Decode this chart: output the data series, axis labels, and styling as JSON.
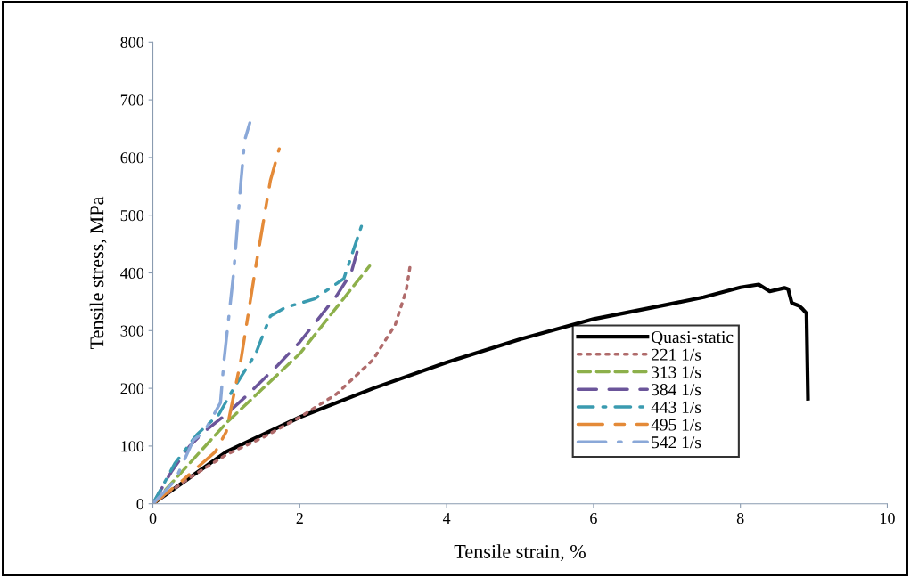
{
  "chart_data": {
    "type": "line",
    "xlabel": "Tensile strain, %",
    "ylabel": "Tensile stress, MPa",
    "xlim": [
      0,
      10
    ],
    "xticks": [
      0,
      2,
      4,
      6,
      8,
      10
    ],
    "ylim": [
      0,
      800
    ],
    "yticks": [
      0,
      100,
      200,
      300,
      400,
      500,
      600,
      700,
      800
    ],
    "grid": false,
    "legend": "right",
    "marker": "none",
    "series": [
      {
        "name": "Quasi-static",
        "color": "#000000",
        "line_style": "solid",
        "x": [
          0,
          0.5,
          1,
          2,
          3,
          4,
          5,
          6,
          7,
          7.5,
          8,
          8.25,
          8.4,
          8.6,
          8.65,
          8.7,
          8.8,
          8.85,
          8.9,
          8.92
        ],
        "values": [
          0,
          45,
          90,
          150,
          200,
          245,
          285,
          320,
          345,
          358,
          375,
          380,
          368,
          374,
          372,
          348,
          343,
          337,
          330,
          182
        ]
      },
      {
        "name": "221 1/s",
        "color": "#b06b6b",
        "line_style": "dotted",
        "x": [
          0,
          0.5,
          1,
          1.5,
          2,
          2.5,
          3,
          3.3,
          3.45,
          3.5
        ],
        "values": [
          0,
          45,
          85,
          115,
          150,
          190,
          250,
          310,
          370,
          410
        ]
      },
      {
        "name": "313 1/s",
        "color": "#8db04b",
        "line_style": "dashed",
        "x": [
          0,
          0.5,
          1,
          1.5,
          2,
          2.5,
          2.95
        ],
        "values": [
          0,
          70,
          140,
          200,
          260,
          340,
          412
        ]
      },
      {
        "name": "384 1/s",
        "color": "#6b559a",
        "line_style": "longdash",
        "x": [
          0,
          0.25,
          0.5,
          0.7,
          1,
          1.3,
          1.7,
          2,
          2.5,
          2.7,
          2.8
        ],
        "values": [
          0,
          55,
          100,
          125,
          155,
          190,
          240,
          280,
          360,
          400,
          445
        ]
      },
      {
        "name": "443 1/s",
        "color": "#3a9bb0",
        "line_style": "dashdot",
        "x": [
          0,
          0.3,
          0.6,
          0.9,
          1.1,
          1.4,
          1.6,
          1.8,
          2.2,
          2.6,
          2.85
        ],
        "values": [
          0,
          70,
          120,
          155,
          200,
          260,
          325,
          340,
          355,
          390,
          485
        ]
      },
      {
        "name": "495 1/s",
        "color": "#e48a38",
        "line_style": "longdashdash",
        "x": [
          0,
          0.4,
          0.85,
          1.0,
          1.2,
          1.4,
          1.6,
          1.72
        ],
        "values": [
          0,
          40,
          90,
          125,
          250,
          410,
          560,
          615
        ]
      },
      {
        "name": "542 1/s",
        "color": "#8aa8d8",
        "line_style": "longdashdot",
        "x": [
          0,
          0.3,
          0.55,
          0.7,
          0.92,
          0.97,
          1.1,
          1.2,
          1.25,
          1.32
        ],
        "values": [
          0,
          40,
          110,
          125,
          175,
          250,
          400,
          560,
          630,
          660
        ]
      }
    ]
  }
}
